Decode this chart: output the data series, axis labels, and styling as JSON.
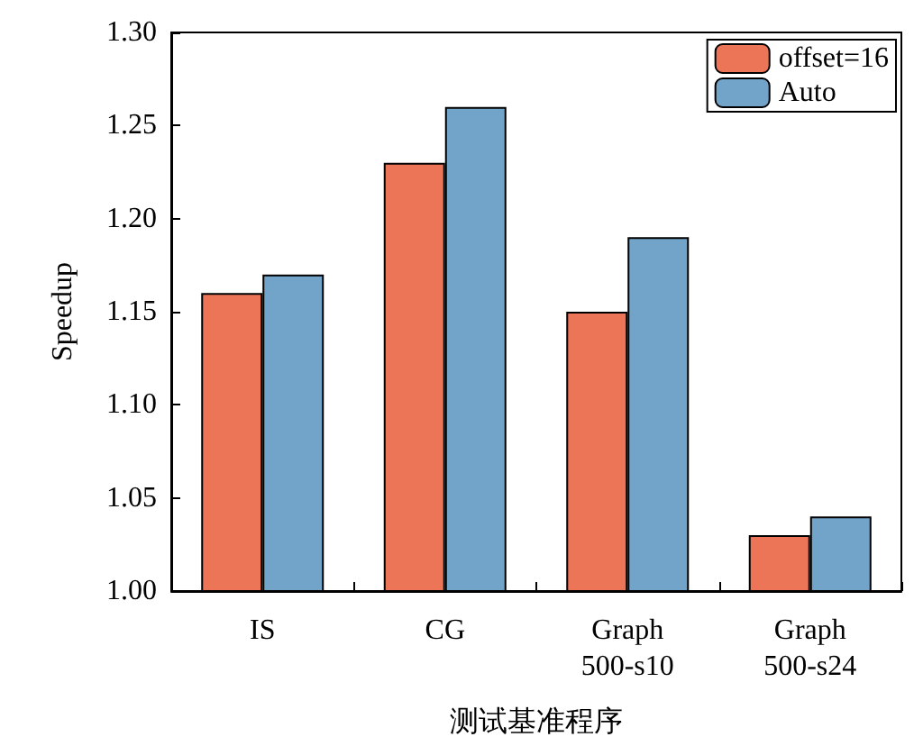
{
  "chart_data": {
    "type": "bar",
    "xlabel": "测试基准程序",
    "ylabel": "Speedup",
    "categories": [
      "IS",
      "CG",
      "Graph\n500-s10",
      "Graph\n500-s24"
    ],
    "series": [
      {
        "name": "offset=16",
        "color": "#ec7558",
        "values": [
          1.16,
          1.23,
          1.15,
          1.03
        ]
      },
      {
        "name": "Auto",
        "color": "#72a3c8",
        "values": [
          1.17,
          1.26,
          1.19,
          1.04
        ]
      }
    ],
    "ylim": [
      1.0,
      1.3
    ],
    "yticks": [
      {
        "value": 1.0,
        "label": "1.00"
      },
      {
        "value": 1.05,
        "label": "1.05"
      },
      {
        "value": 1.1,
        "label": "1.10"
      },
      {
        "value": 1.15,
        "label": "1.15"
      },
      {
        "value": 1.2,
        "label": "1.20"
      },
      {
        "value": 1.25,
        "label": "1.25"
      },
      {
        "value": 1.3,
        "label": "1.30"
      }
    ],
    "grid": false,
    "legend": "top right"
  }
}
